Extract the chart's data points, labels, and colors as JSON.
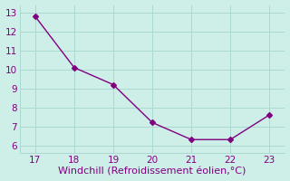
{
  "x": [
    17,
    18,
    19,
    20,
    21,
    22,
    23
  ],
  "y": [
    12.8,
    10.1,
    9.2,
    7.2,
    6.3,
    6.3,
    7.6
  ],
  "line_color": "#800080",
  "marker": "D",
  "marker_size": 3,
  "xlabel": "Windchill (Refroidissement éolien,°C)",
  "xlim": [
    16.6,
    23.4
  ],
  "ylim": [
    5.6,
    13.4
  ],
  "xticks": [
    17,
    18,
    19,
    20,
    21,
    22,
    23
  ],
  "yticks": [
    6,
    7,
    8,
    9,
    10,
    11,
    12,
    13
  ],
  "bg_color": "#ceeee8",
  "grid_color": "#aad8d0",
  "tick_color": "#800080",
  "label_color": "#800080",
  "xlabel_fontsize": 8,
  "tick_fontsize": 7.5
}
